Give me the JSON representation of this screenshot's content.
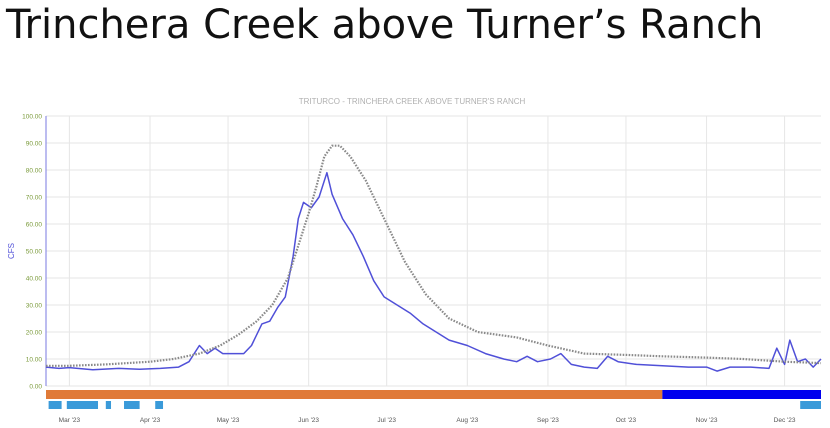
{
  "slide_title": "Trinchera Creek above Turner’s Ranch",
  "colors": {
    "observed_line": "#5050d8",
    "average_line": "#8a8a8a",
    "axis_text_y": "#7a9a3a",
    "axis_text_x": "#555555",
    "grid": "#e6e6e6",
    "bar_orange": "#e07a38",
    "bar_blue": "#0000ee",
    "bar_light_blue": "#3a9ad9",
    "title_gray": "#b0b0b0"
  },
  "chart_data": {
    "type": "line",
    "title": "TRITURCO - TRINCHERA CREEK ABOVE TURNER'S RANCH",
    "ylabel": "CFS",
    "xlabel": "",
    "ylim": [
      0,
      100
    ],
    "grid": true,
    "y_ticks": [
      "0.00",
      "10.00",
      "20.00",
      "30.00",
      "40.00",
      "50.00",
      "60.00",
      "70.00",
      "80.00",
      "90.00",
      "100.00"
    ],
    "x_ticks": [
      "Mar '23",
      "Apr '23",
      "May '23",
      "Jun '23",
      "Jul '23",
      "Aug '23",
      "Sep '23",
      "Oct '23",
      "Nov '23",
      "Dec '23"
    ],
    "x_range": [
      "2023-02-20",
      "2023-12-15"
    ],
    "series": [
      {
        "style": "solid",
        "points": [
          [
            "2023-02-20",
            7
          ],
          [
            "2023-02-25",
            6.5
          ],
          [
            "2023-03-01",
            6.8
          ],
          [
            "2023-03-10",
            6
          ],
          [
            "2023-03-20",
            6.5
          ],
          [
            "2023-03-28",
            6.2
          ],
          [
            "2023-04-05",
            6.5
          ],
          [
            "2023-04-12",
            7
          ],
          [
            "2023-04-16",
            9
          ],
          [
            "2023-04-20",
            15
          ],
          [
            "2023-04-23",
            12
          ],
          [
            "2023-04-26",
            14
          ],
          [
            "2023-04-29",
            12
          ],
          [
            "2023-05-03",
            12
          ],
          [
            "2023-05-07",
            12
          ],
          [
            "2023-05-10",
            15
          ],
          [
            "2023-05-14",
            23
          ],
          [
            "2023-05-17",
            24
          ],
          [
            "2023-05-20",
            29
          ],
          [
            "2023-05-23",
            33
          ],
          [
            "2023-05-26",
            48
          ],
          [
            "2023-05-28",
            62
          ],
          [
            "2023-05-30",
            68
          ],
          [
            "2023-06-02",
            66
          ],
          [
            "2023-06-05",
            70
          ],
          [
            "2023-06-08",
            79
          ],
          [
            "2023-06-10",
            71
          ],
          [
            "2023-06-14",
            62
          ],
          [
            "2023-06-18",
            56
          ],
          [
            "2023-06-22",
            48
          ],
          [
            "2023-06-26",
            39
          ],
          [
            "2023-06-30",
            33
          ],
          [
            "2023-07-05",
            30
          ],
          [
            "2023-07-10",
            27
          ],
          [
            "2023-07-15",
            23
          ],
          [
            "2023-07-20",
            20
          ],
          [
            "2023-07-25",
            17
          ],
          [
            "2023-08-01",
            15
          ],
          [
            "2023-08-08",
            12
          ],
          [
            "2023-08-15",
            10
          ],
          [
            "2023-08-20",
            9
          ],
          [
            "2023-08-24",
            11
          ],
          [
            "2023-08-28",
            9
          ],
          [
            "2023-09-02",
            10
          ],
          [
            "2023-09-06",
            12
          ],
          [
            "2023-09-10",
            8
          ],
          [
            "2023-09-15",
            7
          ],
          [
            "2023-09-20",
            6.5
          ],
          [
            "2023-09-24",
            11
          ],
          [
            "2023-09-28",
            9
          ],
          [
            "2023-10-05",
            8
          ],
          [
            "2023-10-15",
            7.5
          ],
          [
            "2023-10-25",
            7
          ],
          [
            "2023-11-01",
            7
          ],
          [
            "2023-11-05",
            5.5
          ],
          [
            "2023-11-10",
            7
          ],
          [
            "2023-11-18",
            7
          ],
          [
            "2023-11-25",
            6.5
          ],
          [
            "2023-11-28",
            14
          ],
          [
            "2023-12-01",
            8
          ],
          [
            "2023-12-03",
            17
          ],
          [
            "2023-12-06",
            9
          ],
          [
            "2023-12-09",
            10
          ],
          [
            "2023-12-12",
            7
          ],
          [
            "2023-12-15",
            10
          ]
        ]
      },
      {
        "style": "dotted",
        "points": [
          [
            "2023-02-20",
            7.5
          ],
          [
            "2023-03-01",
            7.5
          ],
          [
            "2023-03-15",
            8
          ],
          [
            "2023-04-01",
            9
          ],
          [
            "2023-04-10",
            10
          ],
          [
            "2023-04-20",
            12
          ],
          [
            "2023-04-28",
            15
          ],
          [
            "2023-05-05",
            19
          ],
          [
            "2023-05-12",
            24
          ],
          [
            "2023-05-18",
            30
          ],
          [
            "2023-05-24",
            40
          ],
          [
            "2023-05-28",
            52
          ],
          [
            "2023-06-01",
            64
          ],
          [
            "2023-06-04",
            74
          ],
          [
            "2023-06-07",
            85
          ],
          [
            "2023-06-10",
            89
          ],
          [
            "2023-06-13",
            89
          ],
          [
            "2023-06-17",
            85
          ],
          [
            "2023-06-23",
            76
          ],
          [
            "2023-06-30",
            62
          ],
          [
            "2023-07-08",
            46
          ],
          [
            "2023-07-16",
            34
          ],
          [
            "2023-07-25",
            25
          ],
          [
            "2023-08-05",
            20
          ],
          [
            "2023-08-20",
            18
          ],
          [
            "2023-09-01",
            15
          ],
          [
            "2023-09-15",
            12
          ],
          [
            "2023-10-01",
            11.5
          ],
          [
            "2023-10-15",
            11
          ],
          [
            "2023-11-01",
            10.5
          ],
          [
            "2023-11-15",
            10
          ],
          [
            "2023-12-01",
            9
          ],
          [
            "2023-12-15",
            8.5
          ]
        ]
      }
    ],
    "status_bar": {
      "main": [
        {
          "start": "2023-02-20",
          "end": "2023-10-15",
          "color": "#e07a38"
        },
        {
          "start": "2023-10-15",
          "end": "2023-12-15",
          "color": "#0000ee"
        }
      ],
      "secondary": [
        {
          "start": "2023-02-21",
          "end": "2023-02-26",
          "color": "#3a9ad9"
        },
        {
          "start": "2023-02-28",
          "end": "2023-03-12",
          "color": "#3a9ad9"
        },
        {
          "start": "2023-03-15",
          "end": "2023-03-17",
          "color": "#3a9ad9"
        },
        {
          "start": "2023-03-22",
          "end": "2023-03-28",
          "color": "#3a9ad9"
        },
        {
          "start": "2023-04-03",
          "end": "2023-04-06",
          "color": "#3a9ad9"
        },
        {
          "start": "2023-12-07",
          "end": "2023-12-15",
          "color": "#3a9ad9"
        }
      ]
    }
  }
}
